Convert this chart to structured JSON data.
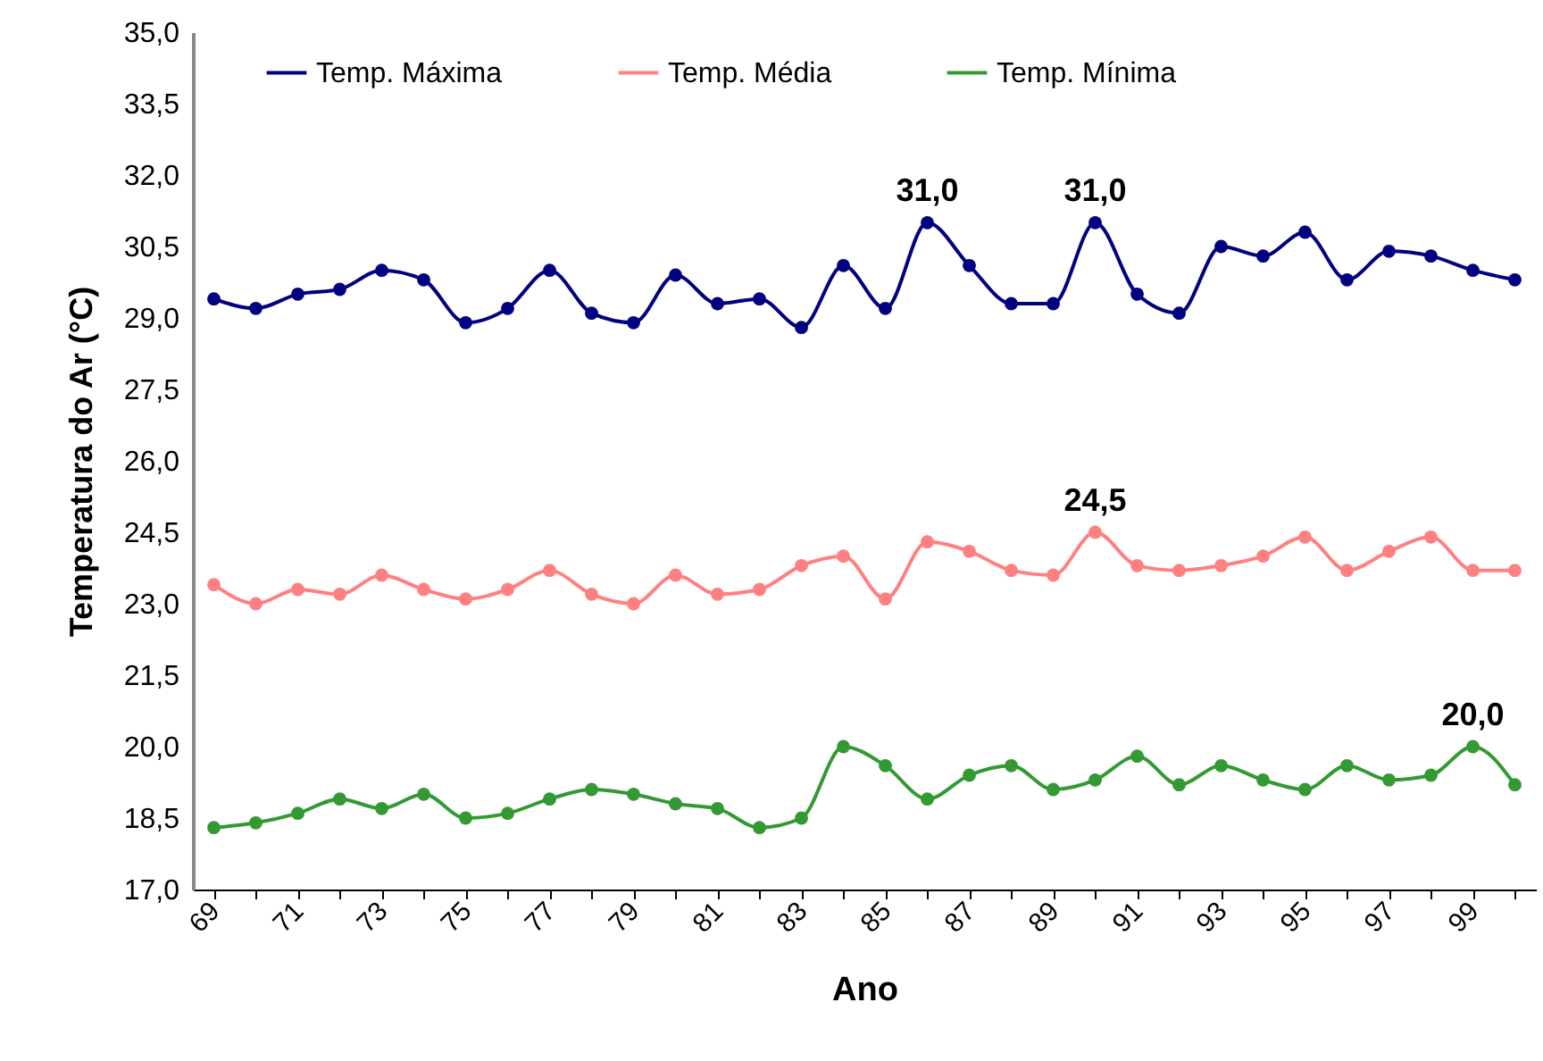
{
  "chart_data": {
    "type": "line",
    "xlabel": "Ano",
    "ylabel": "Temperatura do Ar (°C)",
    "categories": [
      "69",
      null,
      "71",
      null,
      "73",
      null,
      "75",
      null,
      "77",
      null,
      "79",
      null,
      "81",
      null,
      "83",
      null,
      "85",
      null,
      "87",
      null,
      "89",
      null,
      "91",
      null,
      "93",
      null,
      "95",
      null,
      "97",
      null,
      "99",
      null
    ],
    "series": [
      {
        "name": "Temp. Máxima",
        "color": "#000080",
        "values": [
          29.4,
          29.2,
          29.5,
          29.6,
          30.0,
          29.8,
          28.9,
          29.2,
          30.0,
          29.1,
          28.9,
          29.9,
          29.3,
          29.4,
          28.8,
          30.1,
          29.2,
          31.0,
          30.1,
          29.3,
          29.3,
          31.0,
          29.5,
          29.1,
          30.5,
          30.3,
          30.8,
          29.8,
          30.4,
          30.3,
          30.0,
          29.8
        ],
        "value_labels": [
          null,
          null,
          null,
          null,
          null,
          null,
          null,
          null,
          null,
          null,
          null,
          null,
          null,
          null,
          null,
          null,
          null,
          "31,0",
          null,
          null,
          null,
          "31,0",
          null,
          null,
          null,
          null,
          null,
          null,
          null,
          null,
          null,
          null
        ]
      },
      {
        "name": "Temp. Média",
        "color": "#ff8080",
        "values": [
          23.4,
          23.0,
          23.3,
          23.2,
          23.6,
          23.3,
          23.1,
          23.3,
          23.7,
          23.2,
          23.0,
          23.6,
          23.2,
          23.3,
          23.8,
          24.0,
          23.1,
          24.3,
          24.1,
          23.7,
          23.6,
          24.5,
          23.8,
          23.7,
          23.8,
          24.0,
          24.4,
          23.7,
          24.1,
          24.4,
          23.7,
          23.7
        ],
        "value_labels": [
          null,
          null,
          null,
          null,
          null,
          null,
          null,
          null,
          null,
          null,
          null,
          null,
          null,
          null,
          null,
          null,
          null,
          null,
          null,
          null,
          null,
          "24,5",
          null,
          null,
          null,
          null,
          null,
          null,
          null,
          null,
          null,
          null
        ]
      },
      {
        "name": "Temp. Mínima",
        "color": "#339933",
        "values": [
          18.3,
          18.4,
          18.6,
          18.9,
          18.7,
          19.0,
          18.5,
          18.6,
          18.9,
          19.1,
          19.0,
          18.8,
          18.7,
          18.3,
          18.5,
          20.0,
          19.6,
          18.9,
          19.4,
          19.6,
          19.1,
          19.3,
          19.8,
          19.2,
          19.6,
          19.3,
          19.1,
          19.6,
          19.3,
          19.4,
          20.0,
          19.2
        ],
        "value_labels": [
          null,
          null,
          null,
          null,
          null,
          null,
          null,
          null,
          null,
          null,
          null,
          null,
          null,
          null,
          null,
          null,
          null,
          null,
          null,
          null,
          null,
          null,
          null,
          null,
          null,
          null,
          null,
          null,
          null,
          null,
          "20,0",
          null
        ]
      }
    ],
    "ylim": [
      17,
      35
    ],
    "yticks": [
      {
        "value": 17,
        "label": "17,0"
      },
      {
        "value": 18.5,
        "label": "18,5"
      },
      {
        "value": 20,
        "label": "20,0"
      },
      {
        "value": 21.5,
        "label": "21,5"
      },
      {
        "value": 23,
        "label": "23,0"
      },
      {
        "value": 24.5,
        "label": "24,5"
      },
      {
        "value": 26,
        "label": "26,0"
      },
      {
        "value": 27.5,
        "label": "27,5"
      },
      {
        "value": 29,
        "label": "29,0"
      },
      {
        "value": 30.5,
        "label": "30,5"
      },
      {
        "value": 32,
        "label": "32,0"
      },
      {
        "value": 33.5,
        "label": "33,5"
      },
      {
        "value": 35,
        "label": "35,0"
      }
    ],
    "grid": false,
    "legend": "top",
    "marker": "circle",
    "line_style": "solid"
  }
}
